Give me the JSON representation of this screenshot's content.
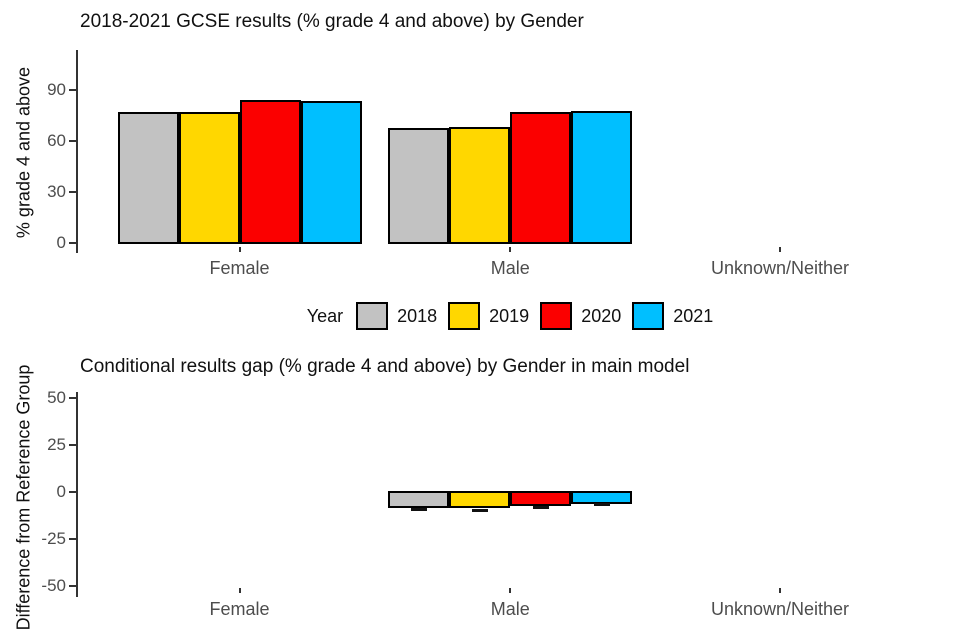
{
  "chart_data": [
    {
      "type": "bar",
      "title": "2018-2021 GCSE results (% grade 4 and above) by Gender",
      "ylabel": "% grade 4 and above",
      "categories": [
        "Female",
        "Male",
        "Unknown/Neither"
      ],
      "series": [
        {
          "name": "2018",
          "color": "#C2C2C2",
          "values": [
            76.8,
            67.2,
            null
          ]
        },
        {
          "name": "2019",
          "color": "#FFD700",
          "values": [
            76.5,
            67.6,
            null
          ]
        },
        {
          "name": "2020",
          "color": "#FB0000",
          "values": [
            83.7,
            76.4,
            null
          ]
        },
        {
          "name": "2021",
          "color": "#00BFFF",
          "values": [
            83.2,
            77.0,
            null
          ]
        }
      ],
      "yticks": [
        0,
        30,
        60,
        90
      ],
      "ylim": [
        0,
        110
      ],
      "grid": "off",
      "legend_position": "below"
    },
    {
      "type": "bar",
      "title": "Conditional results gap (% grade 4 and above) by Gender in main model",
      "ylabel": "Difference from Reference Group",
      "categories": [
        "Female",
        "Male",
        "Unknown/Neither"
      ],
      "series": [
        {
          "name": "2018",
          "color": "#C2C2C2",
          "values": [
            null,
            -8.2,
            null
          ],
          "ci_low": [
            null,
            -9.3,
            null
          ]
        },
        {
          "name": "2019",
          "color": "#FFD700",
          "values": [
            null,
            -8.5,
            null
          ],
          "ci_low": [
            null,
            -9.8,
            null
          ]
        },
        {
          "name": "2020",
          "color": "#FB0000",
          "values": [
            null,
            -7.2,
            null
          ],
          "ci_low": [
            null,
            -8.0,
            null
          ]
        },
        {
          "name": "2021",
          "color": "#00BFFF",
          "values": [
            null,
            -6.1,
            null
          ],
          "ci_low": [
            null,
            -6.9,
            null
          ]
        }
      ],
      "yticks": [
        50,
        25,
        0,
        -25,
        -50
      ],
      "ylim": [
        -55,
        55
      ],
      "grid": "off",
      "reference_group": "Female"
    }
  ],
  "legend": {
    "title": "Year",
    "entries": [
      {
        "label": "2018",
        "color": "#C2C2C2"
      },
      {
        "label": "2019",
        "color": "#FFD700"
      },
      {
        "label": "2020",
        "color": "#FB0000"
      },
      {
        "label": "2021",
        "color": "#00BFFF"
      }
    ]
  }
}
